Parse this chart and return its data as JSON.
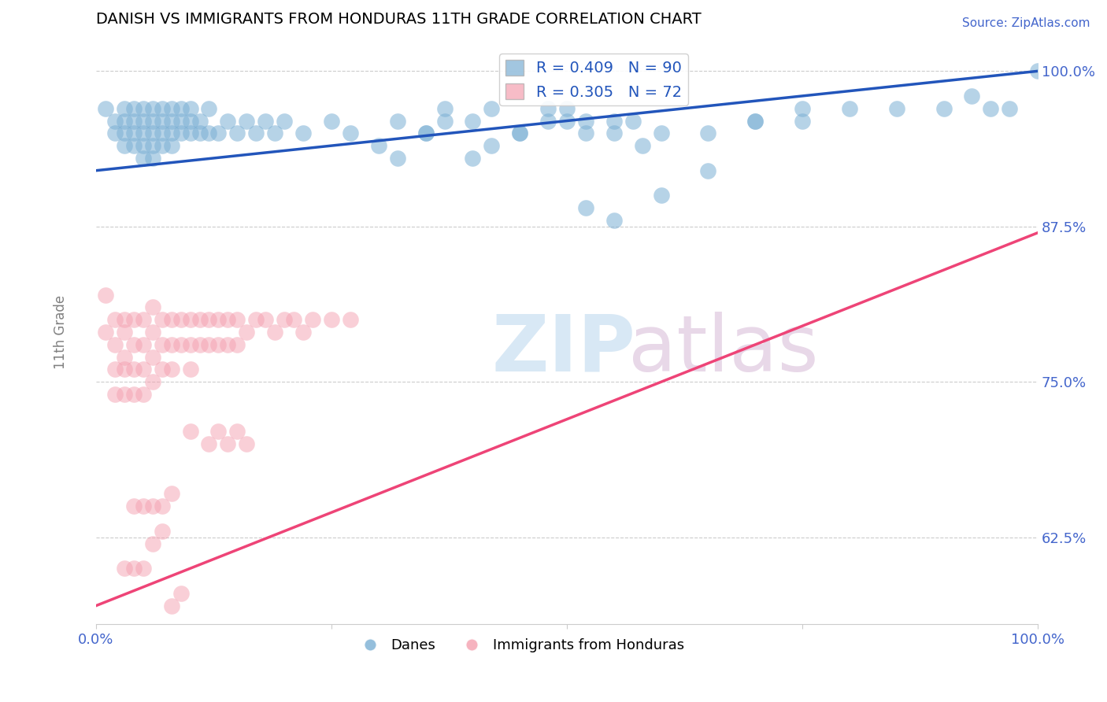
{
  "title": "DANISH VS IMMIGRANTS FROM HONDURAS 11TH GRADE CORRELATION CHART",
  "source": "Source: ZipAtlas.com",
  "ylabel": "11th Grade",
  "xlim": [
    0.0,
    1.0
  ],
  "ylim": [
    0.555,
    1.025
  ],
  "yticks": [
    0.625,
    0.75,
    0.875,
    1.0
  ],
  "ytick_labels": [
    "62.5%",
    "75.0%",
    "87.5%",
    "100.0%"
  ],
  "xtick_labels_show": [
    "0.0%",
    "100.0%"
  ],
  "blue_R": 0.409,
  "blue_N": 90,
  "pink_R": 0.305,
  "pink_N": 72,
  "blue_color": "#7BAFD4",
  "pink_color": "#F4A0B0",
  "blue_line_color": "#2255BB",
  "pink_line_color": "#EE4477",
  "legend_label_blue": "Danes",
  "legend_label_pink": "Immigrants from Honduras",
  "blue_trend_x0": 0.0,
  "blue_trend_y0": 0.92,
  "blue_trend_x1": 1.0,
  "blue_trend_y1": 1.0,
  "pink_trend_x0": 0.0,
  "pink_trend_y0": 0.57,
  "pink_trend_x1": 1.0,
  "pink_trend_y1": 0.87,
  "blue_x": [
    0.01,
    0.02,
    0.02,
    0.03,
    0.03,
    0.03,
    0.03,
    0.04,
    0.04,
    0.04,
    0.04,
    0.05,
    0.05,
    0.05,
    0.05,
    0.05,
    0.06,
    0.06,
    0.06,
    0.06,
    0.06,
    0.07,
    0.07,
    0.07,
    0.07,
    0.08,
    0.08,
    0.08,
    0.08,
    0.09,
    0.09,
    0.09,
    0.1,
    0.1,
    0.1,
    0.11,
    0.11,
    0.12,
    0.12,
    0.13,
    0.14,
    0.15,
    0.16,
    0.17,
    0.18,
    0.19,
    0.2,
    0.22,
    0.25,
    0.27,
    0.3,
    0.32,
    0.35,
    0.37,
    0.4,
    0.42,
    0.45,
    0.5,
    0.52,
    0.55,
    0.58,
    0.6,
    0.65,
    0.7,
    0.75,
    0.52,
    0.55,
    0.6,
    0.65,
    0.7,
    0.75,
    0.8,
    0.85,
    0.9,
    0.93,
    0.95,
    0.97,
    1.0,
    0.48,
    0.5,
    0.52,
    0.55,
    0.57,
    0.32,
    0.35,
    0.37,
    0.4,
    0.42,
    0.45,
    0.48
  ],
  "blue_y": [
    0.97,
    0.96,
    0.95,
    0.97,
    0.96,
    0.95,
    0.94,
    0.97,
    0.96,
    0.95,
    0.94,
    0.97,
    0.96,
    0.95,
    0.94,
    0.93,
    0.97,
    0.96,
    0.95,
    0.94,
    0.93,
    0.97,
    0.96,
    0.95,
    0.94,
    0.97,
    0.96,
    0.95,
    0.94,
    0.97,
    0.96,
    0.95,
    0.97,
    0.96,
    0.95,
    0.96,
    0.95,
    0.97,
    0.95,
    0.95,
    0.96,
    0.95,
    0.96,
    0.95,
    0.96,
    0.95,
    0.96,
    0.95,
    0.96,
    0.95,
    0.94,
    0.93,
    0.95,
    0.96,
    0.93,
    0.94,
    0.95,
    0.96,
    0.95,
    0.96,
    0.94,
    0.95,
    0.95,
    0.96,
    0.96,
    0.89,
    0.88,
    0.9,
    0.92,
    0.96,
    0.97,
    0.97,
    0.97,
    0.97,
    0.98,
    0.97,
    0.97,
    1.0,
    0.97,
    0.97,
    0.96,
    0.95,
    0.96,
    0.96,
    0.95,
    0.97,
    0.96,
    0.97,
    0.95,
    0.96
  ],
  "pink_x": [
    0.01,
    0.01,
    0.02,
    0.02,
    0.02,
    0.02,
    0.03,
    0.03,
    0.03,
    0.03,
    0.03,
    0.04,
    0.04,
    0.04,
    0.04,
    0.05,
    0.05,
    0.05,
    0.05,
    0.06,
    0.06,
    0.06,
    0.06,
    0.07,
    0.07,
    0.07,
    0.08,
    0.08,
    0.08,
    0.09,
    0.09,
    0.1,
    0.1,
    0.1,
    0.11,
    0.11,
    0.12,
    0.12,
    0.13,
    0.13,
    0.14,
    0.14,
    0.15,
    0.15,
    0.16,
    0.17,
    0.18,
    0.19,
    0.2,
    0.21,
    0.22,
    0.23,
    0.25,
    0.27,
    0.1,
    0.12,
    0.13,
    0.14,
    0.15,
    0.16,
    0.04,
    0.05,
    0.06,
    0.07,
    0.08,
    0.03,
    0.04,
    0.05,
    0.06,
    0.07,
    0.08,
    0.09
  ],
  "pink_y": [
    0.82,
    0.79,
    0.8,
    0.78,
    0.76,
    0.74,
    0.8,
    0.79,
    0.77,
    0.76,
    0.74,
    0.8,
    0.78,
    0.76,
    0.74,
    0.8,
    0.78,
    0.76,
    0.74,
    0.81,
    0.79,
    0.77,
    0.75,
    0.8,
    0.78,
    0.76,
    0.8,
    0.78,
    0.76,
    0.8,
    0.78,
    0.8,
    0.78,
    0.76,
    0.8,
    0.78,
    0.8,
    0.78,
    0.8,
    0.78,
    0.8,
    0.78,
    0.8,
    0.78,
    0.79,
    0.8,
    0.8,
    0.79,
    0.8,
    0.8,
    0.79,
    0.8,
    0.8,
    0.8,
    0.71,
    0.7,
    0.71,
    0.7,
    0.71,
    0.7,
    0.65,
    0.65,
    0.65,
    0.65,
    0.66,
    0.6,
    0.6,
    0.6,
    0.62,
    0.63,
    0.57,
    0.58
  ]
}
